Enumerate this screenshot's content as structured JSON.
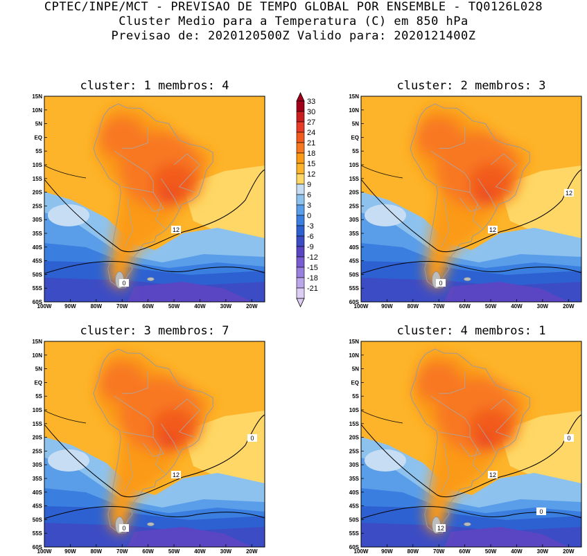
{
  "header": {
    "line1": "CPTEC/INPE/MCT - PREVISAO DE TEMPO GLOBAL POR ENSEMBLE - TQ0126L028",
    "line2": "Cluster Medio para a Temperatura (C) em 850 hPa",
    "line3": "Previsao de: 2020120500Z   Valido para: 2020121400Z"
  },
  "lat_labels": [
    "15N",
    "10N",
    "5N",
    "EQ",
    "5S",
    "10S",
    "15S",
    "20S",
    "25S",
    "30S",
    "35S",
    "40S",
    "45S",
    "50S",
    "55S",
    "60S"
  ],
  "lon_labels": [
    "100W",
    "90W",
    "80W",
    "70W",
    "60W",
    "50W",
    "40W",
    "30W",
    "20W"
  ],
  "colorbar": {
    "labels": [
      "33",
      "30",
      "27",
      "24",
      "21",
      "18",
      "15",
      "12",
      "9",
      "6",
      "3",
      "0",
      "-3",
      "-6",
      "-9",
      "-12",
      "-15",
      "-18",
      "-21"
    ],
    "colors": [
      "#a0001a",
      "#c81e1e",
      "#e83c28",
      "#f25a1e",
      "#f87820",
      "#fb9a14",
      "#fdb42a",
      "#fed766",
      "#c6ddf3",
      "#8ec2ee",
      "#5a9eea",
      "#3a7ee0",
      "#2d61d2",
      "#3c4cc4",
      "#5a46c2",
      "#7a5cd2",
      "#9a80de",
      "#bca6ea",
      "#dccdf4"
    ]
  },
  "panels": [
    {
      "title": "cluster: 1   membros: 4",
      "contour_labels": [
        "12",
        "0"
      ]
    },
    {
      "title": "cluster: 2   membros: 3",
      "contour_labels": [
        "12",
        "0",
        "12"
      ]
    },
    {
      "title": "cluster: 3   membros: 7",
      "contour_labels": [
        "12",
        "0",
        "0"
      ]
    },
    {
      "title": "cluster: 4   membros: 1",
      "contour_labels": [
        "12",
        "12",
        "0",
        "0"
      ]
    }
  ]
}
